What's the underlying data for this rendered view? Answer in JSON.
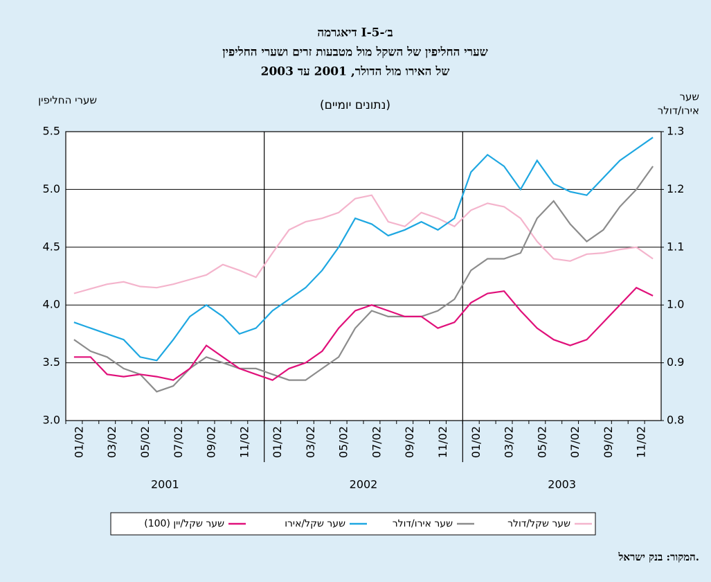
{
  "chart_data": {
    "type": "line",
    "title": "דיאגרמה I-ב׳-5",
    "subtitle": [
      "שערי החליפין של השקל מול מטבעות זרים ושערי החליפין",
      "של האירו מול הדולר, 2001 עד 2003",
      "(נתונים יומיים)"
    ],
    "y_label": "שערי החליפין",
    "y2_label": [
      "שער",
      "אירו/דולר"
    ],
    "source": "המקור: בנק ישראל.",
    "categories": [
      "01/02",
      null,
      "03/02",
      null,
      "05/02",
      null,
      "07/02",
      null,
      "09/02",
      null,
      "11/02",
      null,
      "01/02",
      null,
      "03/02",
      null,
      "05/02",
      null,
      "07/02",
      null,
      "09/02",
      null,
      "11/02",
      null,
      "01/02",
      null,
      "03/02",
      null,
      "05/02",
      null,
      "07/02",
      null,
      "09/02",
      null,
      "11/02",
      null
    ],
    "year_labels": [
      "2001",
      "2002",
      "2003"
    ],
    "ylim": [
      3.0,
      5.5
    ],
    "yticks": [
      {
        "value": 3.0,
        "label": "3.0"
      },
      3.5,
      {
        "value": 4.0,
        "label": "4.0"
      },
      4.5,
      {
        "value": 5.0,
        "label": "5.0"
      },
      5.5
    ],
    "y2lim": [
      0.8,
      1.3
    ],
    "y2ticks": [
      0.8,
      0.9,
      {
        "value": 1.0,
        "label": "1.0"
      },
      1.1,
      1.2,
      1.3
    ],
    "grid": true,
    "series": [
      {
        "name": "שער שקל/דולר",
        "color": "#f4b4cc",
        "values": [
          4.1,
          4.14,
          4.18,
          4.2,
          4.16,
          4.15,
          4.18,
          4.22,
          4.26,
          4.35,
          4.3,
          4.24,
          4.45,
          4.65,
          4.72,
          4.75,
          4.8,
          4.92,
          4.95,
          4.72,
          4.68,
          4.8,
          4.75,
          4.68,
          4.82,
          4.88,
          4.85,
          4.75,
          4.55,
          4.4,
          4.38,
          4.44,
          4.45,
          4.48,
          4.5,
          4.4
        ]
      },
      {
        "name": "שער אירו/דולר",
        "color": "#8c8c8c",
        "axis": "y2",
        "values": [
          0.94,
          0.92,
          0.91,
          0.89,
          0.88,
          0.85,
          0.86,
          0.89,
          0.91,
          0.9,
          0.89,
          0.89,
          0.88,
          0.87,
          0.87,
          0.89,
          0.91,
          0.96,
          0.99,
          0.98,
          0.98,
          0.98,
          0.99,
          1.01,
          1.06,
          1.08,
          1.08,
          1.09,
          1.15,
          1.18,
          1.14,
          1.11,
          1.13,
          1.17,
          1.2,
          1.24
        ]
      },
      {
        "name": "שער שקל/אירו",
        "color": "#1ea7e1",
        "values": [
          3.85,
          3.8,
          3.75,
          3.7,
          3.55,
          3.52,
          3.7,
          3.9,
          4.0,
          3.9,
          3.75,
          3.8,
          3.95,
          4.05,
          4.15,
          4.3,
          4.5,
          4.75,
          4.7,
          4.6,
          4.65,
          4.72,
          4.65,
          4.75,
          5.15,
          5.3,
          5.2,
          5.0,
          5.25,
          5.05,
          4.98,
          4.95,
          5.1,
          5.25,
          5.35,
          5.45
        ]
      },
      {
        "name": "שער שקל/יין (100)",
        "color": "#e0107a",
        "values": [
          3.55,
          3.55,
          3.4,
          3.38,
          3.4,
          3.38,
          3.35,
          3.45,
          3.65,
          3.55,
          3.45,
          3.4,
          3.35,
          3.45,
          3.5,
          3.6,
          3.8,
          3.95,
          4.0,
          3.95,
          3.9,
          3.9,
          3.8,
          3.85,
          4.02,
          4.1,
          4.12,
          3.95,
          3.8,
          3.7,
          3.65,
          3.7,
          3.85,
          4.0,
          4.15,
          4.08
        ]
      }
    ]
  }
}
